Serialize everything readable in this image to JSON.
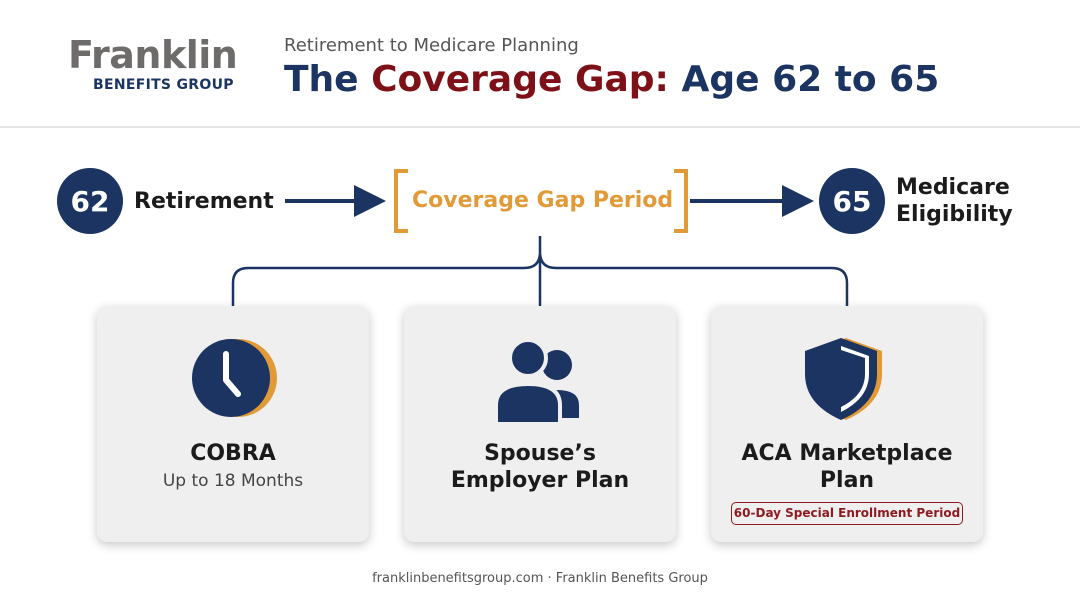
{
  "header": {
    "logo_name": "Franklin",
    "logo_sub": "BENEFITS GROUP",
    "supertitle": "Retirement to Medicare Planning",
    "title_part1": "The ",
    "title_accent": "Coverage Gap:",
    "title_part2": " Age 62 to 65"
  },
  "timeline": {
    "start": {
      "age": "62",
      "label": "Retirement"
    },
    "gap_label": "Coverage Gap Period",
    "end": {
      "age": "65",
      "label_line1": "Medicare",
      "label_line2": "Eligibility"
    }
  },
  "options": [
    {
      "icon": "clock-icon",
      "title": "COBRA",
      "subtitle": "Up to 18 Months"
    },
    {
      "icon": "users-icon",
      "title_line1": "Spouse’s",
      "title_line2": "Employer Plan"
    },
    {
      "icon": "shield-icon",
      "title_line1": "ACA Marketplace",
      "title_line2": "Plan",
      "badge": "60-Day Special Enrollment Period"
    }
  ],
  "footer": "franklinbenefitsgroup.com · Franklin Benefits Group",
  "colors": {
    "navy": "#1c3461",
    "maroon": "#7d1117",
    "gold": "#e29a37",
    "card": "#efefef"
  }
}
